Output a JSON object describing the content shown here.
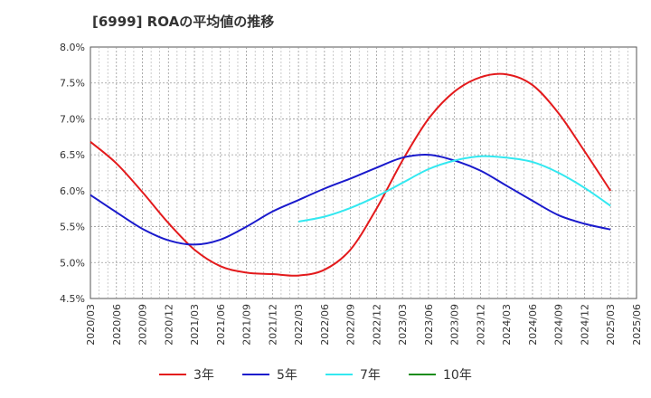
{
  "chart_data": {
    "type": "line",
    "title": "[6999]  ROAの平均値の推移",
    "xlabel": "",
    "ylabel": "",
    "ylim": [
      4.5,
      8.0
    ],
    "y_ticks": [
      "4.5%",
      "5.0%",
      "5.5%",
      "6.0%",
      "6.5%",
      "7.0%",
      "7.5%",
      "8.0%"
    ],
    "x_ticks": [
      "2020/03",
      "2020/06",
      "2020/09",
      "2020/12",
      "2021/03",
      "2021/06",
      "2021/09",
      "2021/12",
      "2022/03",
      "2022/06",
      "2022/09",
      "2022/12",
      "2023/03",
      "2023/06",
      "2023/09",
      "2023/12",
      "2024/03",
      "2024/06",
      "2024/09",
      "2024/12",
      "2025/03",
      "2025/06"
    ],
    "grid": true,
    "legend_position": "bottom",
    "series": [
      {
        "name": "3年",
        "color": "#e31a1c",
        "x": [
          "2020/03",
          "2020/06",
          "2020/09",
          "2020/12",
          "2021/03",
          "2021/06",
          "2021/09",
          "2021/12",
          "2022/03",
          "2022/06",
          "2022/09",
          "2022/12",
          "2023/03",
          "2023/06",
          "2023/09",
          "2023/12",
          "2024/03",
          "2024/06",
          "2024/09",
          "2024/12",
          "2025/03"
        ],
        "values": [
          6.68,
          6.38,
          5.98,
          5.55,
          5.18,
          4.95,
          4.86,
          4.84,
          4.82,
          4.9,
          5.18,
          5.75,
          6.42,
          7.0,
          7.38,
          7.58,
          7.62,
          7.47,
          7.08,
          6.55,
          6.0
        ]
      },
      {
        "name": "5年",
        "color": "#1a1acc",
        "x": [
          "2020/03",
          "2020/06",
          "2020/09",
          "2020/12",
          "2021/03",
          "2021/06",
          "2021/09",
          "2021/12",
          "2022/03",
          "2022/06",
          "2022/09",
          "2022/12",
          "2023/03",
          "2023/06",
          "2023/09",
          "2023/12",
          "2024/03",
          "2024/06",
          "2024/09",
          "2024/12",
          "2025/03"
        ],
        "values": [
          5.94,
          5.7,
          5.47,
          5.31,
          5.25,
          5.32,
          5.5,
          5.71,
          5.87,
          6.03,
          6.17,
          6.32,
          6.46,
          6.5,
          6.42,
          6.28,
          6.07,
          5.86,
          5.66,
          5.54,
          5.46
        ]
      },
      {
        "name": "7年",
        "color": "#33e8f0",
        "x": [
          "2022/03",
          "2022/06",
          "2022/09",
          "2022/12",
          "2023/03",
          "2023/06",
          "2023/09",
          "2023/12",
          "2024/03",
          "2024/06",
          "2024/09",
          "2024/12",
          "2025/03"
        ],
        "values": [
          5.57,
          5.64,
          5.76,
          5.92,
          6.11,
          6.3,
          6.42,
          6.48,
          6.46,
          6.4,
          6.25,
          6.04,
          5.79
        ]
      },
      {
        "name": "10年",
        "color": "#1a8c1a",
        "x": [],
        "values": []
      }
    ]
  }
}
